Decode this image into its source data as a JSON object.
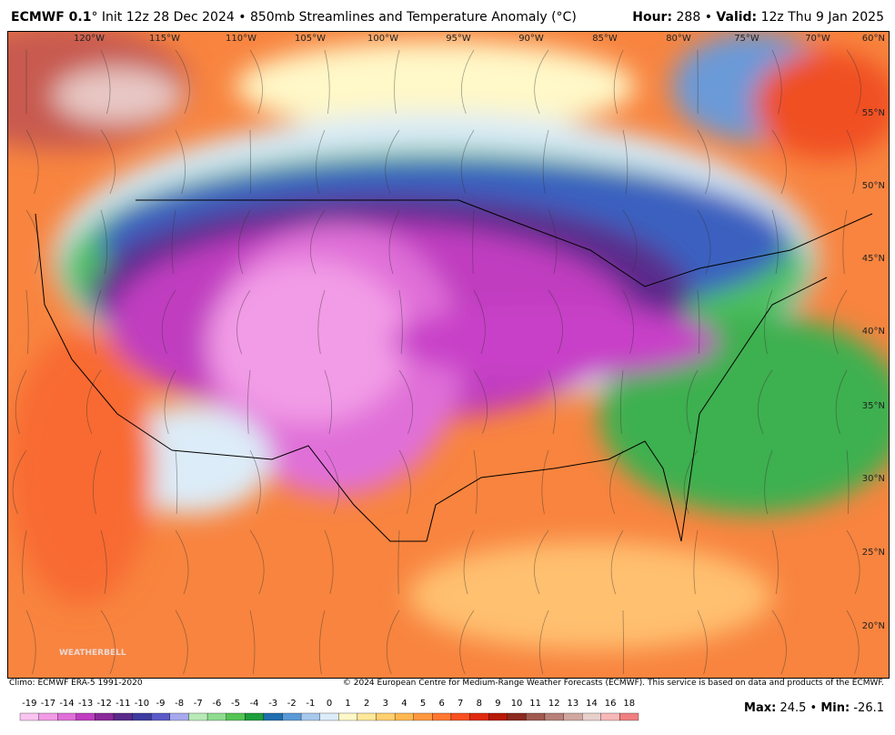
{
  "header": {
    "model": "ECMWF 0.1",
    "description": "° Init 12z 28 Dec 2024 • 850mb Streamlines and Temperature Anomaly (°C)",
    "hour_label": "Hour:",
    "hour": "288",
    "separator": "•",
    "valid_label": "Valid:",
    "valid": "12z Thu 9 Jan 2025"
  },
  "map": {
    "longitude_labels": [
      "120°W",
      "115°W",
      "110°W",
      "105°W",
      "100°W",
      "95°W",
      "90°W",
      "85°W",
      "80°W",
      "75°W",
      "70°W"
    ],
    "latitude_labels": [
      "60°N",
      "55°N",
      "50°N",
      "45°N",
      "40°N",
      "35°N",
      "30°N",
      "25°N",
      "20°N"
    ],
    "watermark": "WEATHERBELL"
  },
  "footer": {
    "climo": "Climo: ECMWF ERA-5 1991-2020",
    "copyright": "© 2024 European Centre for Medium-Range Weather Forecasts (ECMWF). This service is based on data and products of the ECMWF."
  },
  "colorbar": {
    "ticks": [
      -19,
      -17,
      -14,
      -13,
      -12,
      -11,
      -10,
      -9,
      -8,
      -7,
      -6,
      -5,
      -4,
      -3,
      -2,
      -1,
      0,
      1,
      2,
      3,
      4,
      5,
      6,
      7,
      8,
      9,
      10,
      11,
      12,
      13,
      14,
      16,
      18
    ],
    "colors": [
      "#f9c4f0",
      "#f29be6",
      "#e070d8",
      "#c03ec0",
      "#8a2a9a",
      "#5a2a8a",
      "#3c3ca0",
      "#5a5ac8",
      "#a8a8ee",
      "#b8eab8",
      "#8fdc8f",
      "#55c455",
      "#1e9e3c",
      "#1f6fb0",
      "#5a9ad8",
      "#a8c8ec",
      "#dcecf8",
      "#fff8c8",
      "#ffe89a",
      "#ffd070",
      "#ffb850",
      "#ff9840",
      "#ff7830",
      "#f85020",
      "#e02a10",
      "#b81a08",
      "#8a2a20",
      "#a05a50",
      "#b88078",
      "#d0a8a0",
      "#e8d0cc",
      "#f8b8b8",
      "#f08080"
    ]
  },
  "stats": {
    "max_label": "Max:",
    "max": 24.5,
    "separator": "•",
    "min_label": "Min:",
    "min": -26.1
  }
}
